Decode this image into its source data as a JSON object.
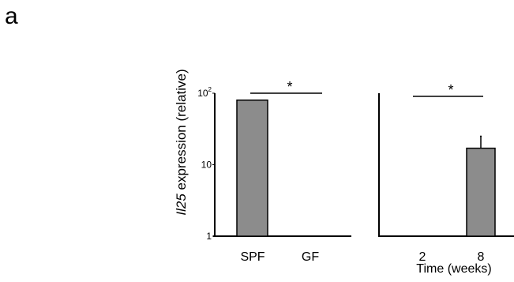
{
  "figure": {
    "panel_label": "a",
    "ylabel_italic": "Il25",
    "ylabel_rest": " expression (relative)"
  },
  "chart_data": [
    {
      "type": "bar",
      "categories": [
        "SPF",
        "GF"
      ],
      "values": [
        80,
        1
      ],
      "yscale": "log",
      "ylim": [
        1,
        100
      ],
      "yticks": [
        {
          "base": "10",
          "exp": "2",
          "value": 100
        },
        {
          "base": "10",
          "exp": "",
          "value": 10
        },
        {
          "base": "1",
          "exp": "",
          "value": 1
        }
      ],
      "ylabel": "Il25 expression (relative)",
      "xlabel": "",
      "annotation": "*",
      "bar_color": "#8c8c8c"
    },
    {
      "type": "bar",
      "categories": [
        "2",
        "8"
      ],
      "values": [
        1,
        17
      ],
      "errors": [
        0,
        8
      ],
      "yscale": "log",
      "ylim": [
        1,
        100
      ],
      "xlabel": "Time (weeks)",
      "annotation": "*",
      "bar_color": "#8c8c8c"
    }
  ]
}
